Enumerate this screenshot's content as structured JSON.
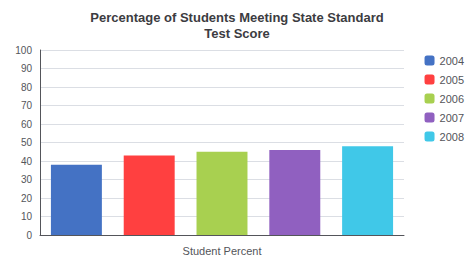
{
  "chart_data": {
    "type": "bar",
    "title": "Percentage of Students Meeting State Standard\nTest Score",
    "xlabel": "Student Percent",
    "categories": [
      "2004",
      "2005",
      "2006",
      "2007",
      "2008"
    ],
    "values": [
      38,
      43,
      45,
      46,
      48
    ],
    "colors": [
      "#4472C4",
      "#FF4040",
      "#A8D050",
      "#9060C0",
      "#40C8E8"
    ],
    "ylim": [
      0,
      100
    ],
    "yticks": [
      0,
      10,
      20,
      30,
      40,
      50,
      60,
      70,
      80,
      90,
      100
    ],
    "grid": true,
    "legend": "upper right",
    "tick_labels": "y"
  }
}
